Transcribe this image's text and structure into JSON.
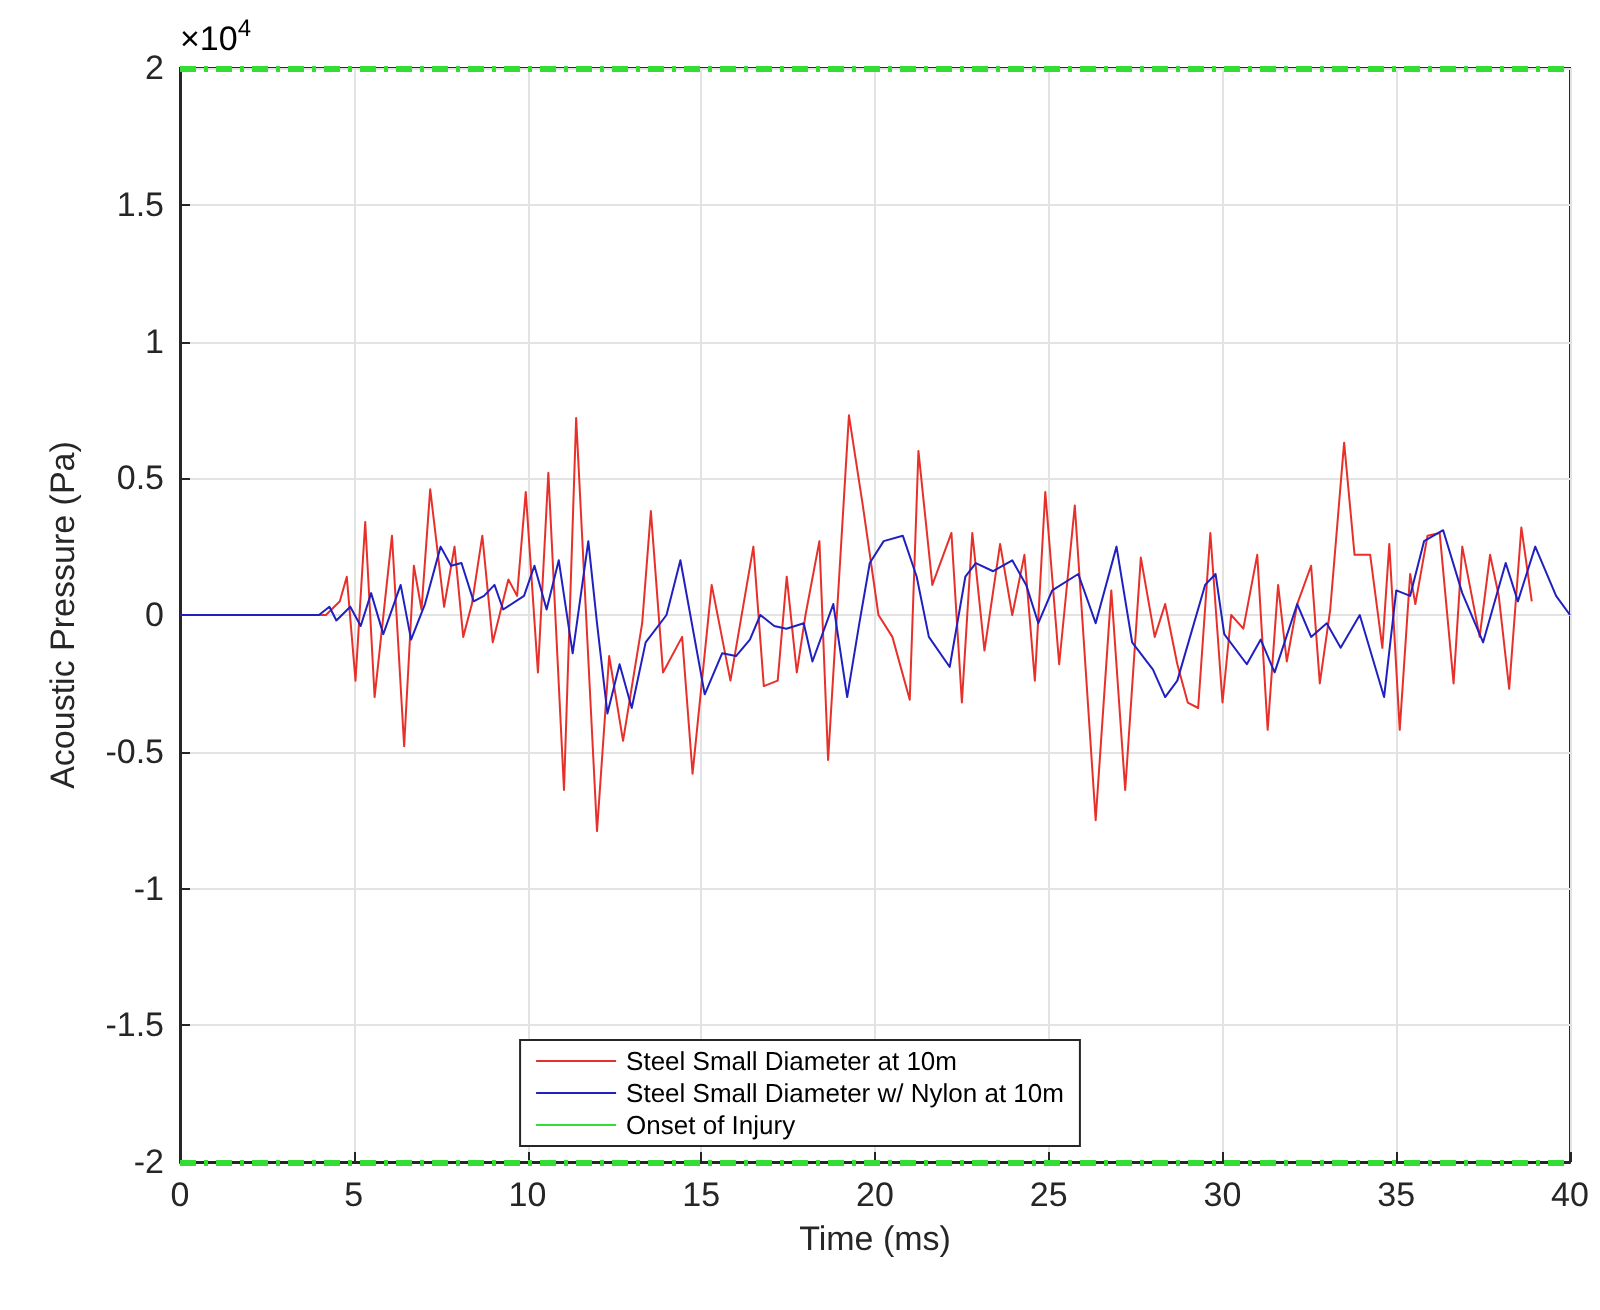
{
  "chart_data": {
    "type": "line",
    "xlabel": "Time (ms)",
    "ylabel": "Acoustic Pressure (Pa)",
    "annotations": [
      "×10$^{4}$"
    ],
    "xlim": [
      0,
      40
    ],
    "xticks": [
      0,
      5,
      10,
      15,
      20,
      25,
      30,
      35,
      40
    ],
    "ylim": [
      -2,
      2
    ],
    "yticks": [
      -2,
      -1.5,
      -1,
      -0.5,
      0,
      0.5,
      1,
      1.5,
      2
    ],
    "grid": true,
    "legend": "bottom",
    "line_style": "solid",
    "marker": "none",
    "ref_lines": [
      {
        "axis": "y",
        "value": 2,
        "label": "Onset of Injury",
        "color": "#33dd33",
        "line_style": "dashed"
      },
      {
        "axis": "y",
        "value": -2,
        "color": "#33dd33",
        "line_style": "dashed"
      }
    ],
    "series": [
      {
        "name": "Steel Small Diameter at 10m",
        "color": "#e8302a",
        "x": [
          0,
          4,
          4.2,
          4.6,
          4.8,
          5.05,
          5.33,
          5.6,
          6.1,
          6.45,
          6.73,
          6.95,
          7.2,
          7.6,
          7.9,
          8.15,
          8.4,
          8.7,
          9.0,
          9.45,
          9.7,
          9.95,
          10.3,
          10.6,
          11.05,
          11.4,
          12.0,
          12.35,
          12.75,
          13.3,
          13.55,
          13.9,
          14.45,
          14.75,
          15.3,
          15.84,
          16.5,
          16.8,
          17.2,
          17.46,
          17.75,
          18.0,
          18.4,
          18.65,
          19.25,
          19.65,
          20.1,
          20.5,
          21.0,
          21.25,
          21.65,
          22.2,
          22.5,
          22.8,
          23.15,
          23.6,
          23.95,
          24.3,
          24.6,
          24.9,
          25.3,
          25.75,
          26.35,
          26.8,
          27.2,
          27.65,
          28.05,
          28.35,
          28.7,
          29.0,
          29.3,
          29.65,
          30.0,
          30.25,
          30.6,
          31.0,
          31.3,
          31.6,
          31.85,
          32.15,
          32.55,
          32.8,
          33.1,
          33.5,
          33.8,
          34.25,
          34.6,
          34.8,
          35.1,
          35.4,
          35.55,
          35.9,
          36.25,
          36.65,
          36.9,
          37.4,
          37.7,
          37.95,
          38.25,
          38.6,
          38.9
        ],
        "values": [
          0,
          0,
          0,
          0.05,
          0.14,
          -0.24,
          0.34,
          -0.3,
          0.29,
          -0.48,
          0.18,
          0.02,
          0.46,
          0.03,
          0.25,
          -0.08,
          0.04,
          0.29,
          -0.1,
          0.13,
          0.07,
          0.45,
          -0.21,
          0.52,
          -0.64,
          0.72,
          -0.79,
          -0.15,
          -0.46,
          -0.03,
          0.38,
          -0.21,
          -0.08,
          -0.58,
          0.11,
          -0.24,
          0.25,
          -0.26,
          -0.24,
          0.14,
          -0.21,
          0,
          0.27,
          -0.53,
          0.73,
          0.4,
          0,
          -0.08,
          -0.31,
          0.6,
          0.11,
          0.3,
          -0.32,
          0.3,
          -0.13,
          0.26,
          0,
          0.22,
          -0.24,
          0.45,
          -0.18,
          0.4,
          -0.75,
          0.09,
          -0.64,
          0.21,
          -0.08,
          0.04,
          -0.18,
          -0.32,
          -0.34,
          0.3,
          -0.32,
          0,
          -0.05,
          0.22,
          -0.42,
          0.11,
          -0.17,
          0.04,
          0.18,
          -0.25,
          0.02,
          0.63,
          0.22,
          0.22,
          -0.12,
          0.26,
          -0.42,
          0.15,
          0.04,
          0.29,
          0.3,
          -0.25,
          0.25,
          -0.08,
          0.22,
          0.07,
          -0.27,
          0.32,
          0.05
        ]
      },
      {
        "name": "Steel Small Diameter w/ Nylon at 10m",
        "color": "#2020c0",
        "x": [
          0,
          4.0,
          4.3,
          4.5,
          4.9,
          5.2,
          5.5,
          5.85,
          6.35,
          6.65,
          7.05,
          7.5,
          7.8,
          8.1,
          8.45,
          8.75,
          9.05,
          9.3,
          9.9,
          10.2,
          10.55,
          10.9,
          11.3,
          11.75,
          12.0,
          12.3,
          12.65,
          13.0,
          13.4,
          14.0,
          14.4,
          15.1,
          15.6,
          16.0,
          16.4,
          16.7,
          17.1,
          17.45,
          17.95,
          18.2,
          18.8,
          19.2,
          19.55,
          19.85,
          20.25,
          20.8,
          21.2,
          21.55,
          22.15,
          22.6,
          22.9,
          23.4,
          23.95,
          24.35,
          24.7,
          25.1,
          25.85,
          26.35,
          26.95,
          27.4,
          28.0,
          28.35,
          28.7,
          29.5,
          29.8,
          30.05,
          30.7,
          31.1,
          31.5,
          32.15,
          32.55,
          33.0,
          33.4,
          33.95,
          34.65,
          35.0,
          35.4,
          35.8,
          36.35,
          36.9,
          37.5,
          38.15,
          38.5,
          39.0,
          39.6,
          40
        ],
        "values": [
          0,
          0,
          0.03,
          -0.02,
          0.03,
          -0.04,
          0.08,
          -0.07,
          0.11,
          -0.09,
          0.04,
          0.25,
          0.18,
          0.19,
          0.05,
          0.07,
          0.11,
          0.02,
          0.07,
          0.18,
          0.02,
          0.2,
          -0.14,
          0.27,
          -0.03,
          -0.36,
          -0.18,
          -0.34,
          -0.1,
          0,
          0.2,
          -0.29,
          -0.14,
          -0.15,
          -0.09,
          0,
          -0.04,
          -0.05,
          -0.03,
          -0.17,
          0.04,
          -0.3,
          -0.03,
          0.19,
          0.27,
          0.29,
          0.14,
          -0.08,
          -0.19,
          0.14,
          0.19,
          0.16,
          0.2,
          0.11,
          -0.03,
          0.09,
          0.15,
          -0.03,
          0.25,
          -0.1,
          -0.2,
          -0.3,
          -0.24,
          0.11,
          0.15,
          -0.07,
          -0.18,
          -0.09,
          -0.21,
          0.04,
          -0.08,
          -0.03,
          -0.12,
          0,
          -0.3,
          0.09,
          0.07,
          0.27,
          0.31,
          0.08,
          -0.1,
          0.19,
          0.05,
          0.25,
          0.07,
          0
        ]
      }
    ]
  }
}
